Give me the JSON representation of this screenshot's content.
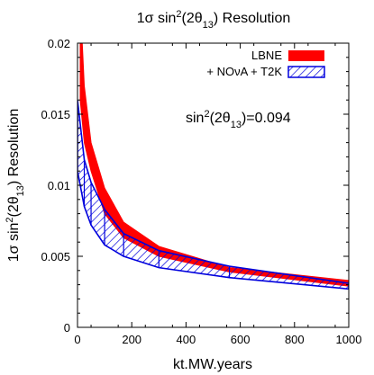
{
  "chart_data": {
    "type": "area",
    "title": {
      "base": "1σ sin",
      "sup": "2",
      "rest": "(2θ",
      "sub": "13",
      "end": ") Resolution"
    },
    "xlabel": "kt.MW.years",
    "ylabel": {
      "base": "1σ sin",
      "sup": "2",
      "rest": "(2θ",
      "sub": "13",
      "end": ") Resolution"
    },
    "annotation": {
      "base": "sin",
      "sup": "2",
      "rest": "(2θ",
      "sub": "13",
      "end": ")=0.094"
    },
    "xlim": [
      0,
      1000
    ],
    "ylim": [
      0,
      0.02
    ],
    "xticks": [
      0,
      200,
      400,
      600,
      800,
      1000
    ],
    "yticks": [
      0,
      0.005,
      0.01,
      0.015,
      0.02
    ],
    "ytick_labels": [
      "0",
      "0.005",
      "0.01",
      "0.015",
      "0.02"
    ],
    "legend_position": "top-right",
    "series": [
      {
        "name": "LBNE",
        "style": "filled",
        "color": "#ff0000",
        "x": [
          10,
          25,
          50,
          100,
          170,
          300,
          560,
          1000
        ],
        "lower": [
          0.016,
          0.013,
          0.011,
          0.008,
          0.0063,
          0.005,
          0.0039,
          0.0029
        ],
        "upper": [
          0.023,
          0.017,
          0.013,
          0.0098,
          0.0074,
          0.0057,
          0.0042,
          0.0033
        ]
      },
      {
        "name": "+ NOνA + T2K",
        "style": "hatched",
        "color": "#0000dd",
        "x": [
          0,
          25,
          50,
          100,
          170,
          300,
          560,
          1000
        ],
        "lower": [
          0.011,
          0.0085,
          0.0072,
          0.0058,
          0.005,
          0.0042,
          0.0035,
          0.0027
        ],
        "upper": [
          0.016,
          0.0118,
          0.0102,
          0.0083,
          0.0066,
          0.0054,
          0.0043,
          0.0031
        ]
      }
    ]
  }
}
